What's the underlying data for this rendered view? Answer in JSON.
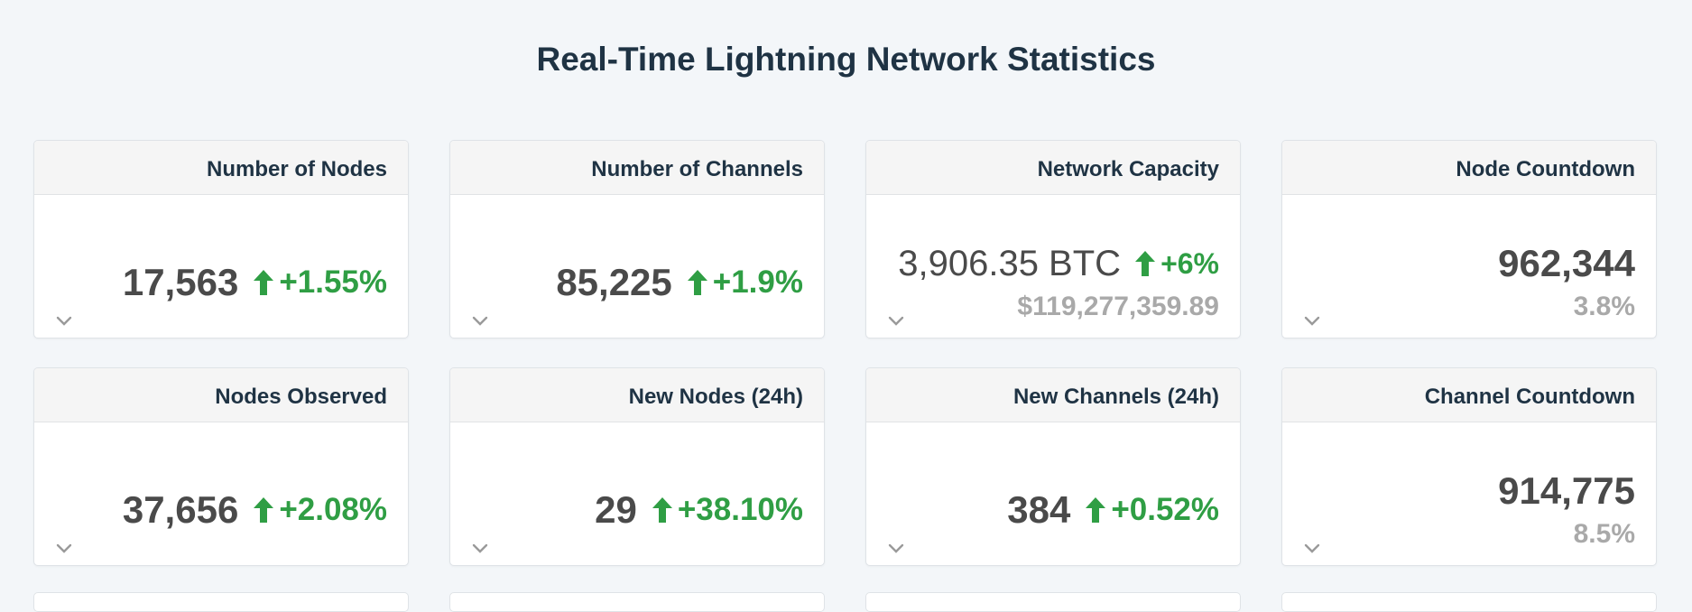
{
  "page": {
    "title": "Real-Time Lightning Network Statistics"
  },
  "colors": {
    "background": "#f3f6f9",
    "title": "#1f3344",
    "value": "#4a4a4a",
    "positive_change": "#2f9e44",
    "secondary_value": "#a9a9a9",
    "card_header": "#f5f5f5"
  },
  "icons": {
    "change": "up-arrow-icon",
    "expand": "chevron-down-icon"
  },
  "cards": [
    {
      "title": "Number of Nodes",
      "value": "17,563",
      "change": "+1.55%"
    },
    {
      "title": "Number of Channels",
      "value": "85,225",
      "change": "+1.9%"
    },
    {
      "title": "Network Capacity",
      "value": "3,906.35 BTC",
      "change": "+6%",
      "sub_value": "$119,277,359.89"
    },
    {
      "title": "Node Countdown",
      "value": "962,344",
      "sub_value": "3.8%"
    },
    {
      "title": "Nodes Observed",
      "value": "37,656",
      "change": "+2.08%"
    },
    {
      "title": "New Nodes (24h)",
      "value": "29",
      "change": "+38.10%"
    },
    {
      "title": "New Channels (24h)",
      "value": "384",
      "change": "+0.52%"
    },
    {
      "title": "Channel Countdown",
      "value": "914,775",
      "sub_value": "8.5%"
    }
  ]
}
